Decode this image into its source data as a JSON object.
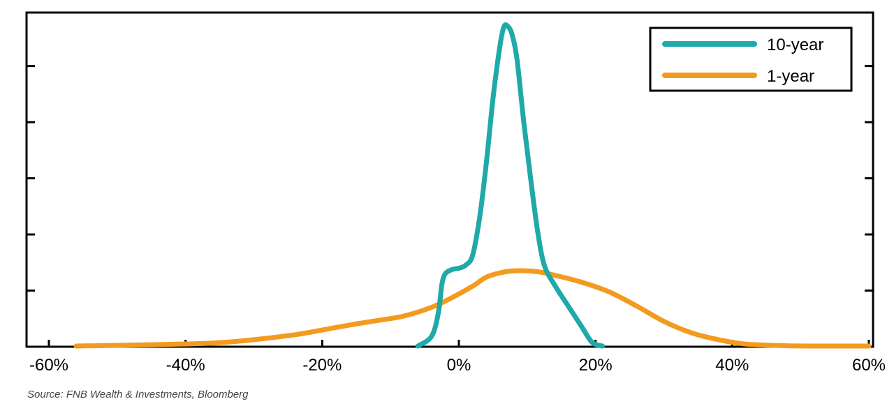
{
  "source": "Source: FNB Wealth & Investments, Bloomberg",
  "chart_data": {
    "type": "line",
    "title": "",
    "xlabel": "",
    "ylabel": "",
    "xlim": [
      -60,
      60
    ],
    "ylim": [
      0,
      100
    ],
    "x_ticks": [
      {
        "value": -60,
        "label": "-60%"
      },
      {
        "value": -40,
        "label": "-40%"
      },
      {
        "value": -20,
        "label": "-20%"
      },
      {
        "value": 0,
        "label": "0%"
      },
      {
        "value": 20,
        "label": "20%"
      },
      {
        "value": 40,
        "label": "40%"
      },
      {
        "value": 60,
        "label": "60%"
      }
    ],
    "y_ticks": [
      16.8,
      33.6,
      50.4,
      67.2,
      84
    ],
    "y_tick_labels_shown": false,
    "grid": false,
    "legend_position": "top-right",
    "series": [
      {
        "name": "10-year",
        "color": "#1fa9a9",
        "points": [
          [
            -6.0,
            0.2
          ],
          [
            -4.0,
            3.1
          ],
          [
            -3.0,
            10.1
          ],
          [
            -2.5,
            18.5
          ],
          [
            -2.0,
            21.8
          ],
          [
            -1.0,
            23.1
          ],
          [
            0.0,
            23.5
          ],
          [
            1.0,
            24.4
          ],
          [
            2.0,
            27.3
          ],
          [
            3.0,
            38.2
          ],
          [
            4.0,
            54.6
          ],
          [
            5.0,
            74.4
          ],
          [
            6.0,
            89.9
          ],
          [
            6.6,
            95.8
          ],
          [
            7.2,
            95.8
          ],
          [
            7.8,
            93.3
          ],
          [
            8.5,
            86.1
          ],
          [
            9.5,
            67.2
          ],
          [
            10.5,
            50.4
          ],
          [
            11.5,
            34.9
          ],
          [
            12.5,
            24.4
          ],
          [
            14.0,
            18.5
          ],
          [
            16.0,
            12.2
          ],
          [
            18.0,
            5.9
          ],
          [
            19.5,
            1.3
          ],
          [
            21.0,
            0.2
          ]
        ]
      },
      {
        "name": "1-year",
        "color": "#f39b1f",
        "points": [
          [
            -56.0,
            0.2
          ],
          [
            -45.0,
            0.6
          ],
          [
            -36.0,
            1.1
          ],
          [
            -30.0,
            2.1
          ],
          [
            -24.0,
            3.6
          ],
          [
            -20.0,
            5.0
          ],
          [
            -16.0,
            6.5
          ],
          [
            -12.0,
            7.8
          ],
          [
            -8.0,
            9.2
          ],
          [
            -4.0,
            11.8
          ],
          [
            -1.0,
            14.7
          ],
          [
            2.0,
            18.1
          ],
          [
            4.0,
            20.8
          ],
          [
            6.0,
            22.1
          ],
          [
            8.0,
            22.7
          ],
          [
            10.0,
            22.7
          ],
          [
            12.0,
            22.3
          ],
          [
            14.0,
            21.4
          ],
          [
            18.0,
            19.3
          ],
          [
            22.0,
            16.4
          ],
          [
            26.0,
            12.2
          ],
          [
            30.0,
            7.6
          ],
          [
            34.0,
            4.2
          ],
          [
            38.0,
            2.1
          ],
          [
            42.0,
            0.8
          ],
          [
            48.0,
            0.3
          ],
          [
            55.0,
            0.2
          ],
          [
            60.0,
            0.2
          ]
        ]
      }
    ]
  }
}
